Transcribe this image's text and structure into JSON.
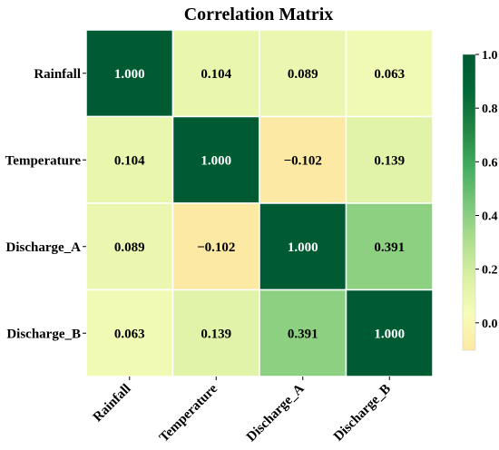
{
  "chart_data": {
    "type": "heatmap",
    "title": "Correlation Matrix",
    "row_labels": [
      "Rainfall",
      "Temperature",
      "Discharge_A",
      "Discharge_B"
    ],
    "col_labels": [
      "Rainfall",
      "Temperature",
      "Discharge_A",
      "Discharge_B"
    ],
    "values": [
      [
        1.0,
        0.104,
        0.089,
        0.063
      ],
      [
        0.104,
        1.0,
        -0.102,
        0.139
      ],
      [
        0.089,
        -0.102,
        1.0,
        0.391
      ],
      [
        0.063,
        0.139,
        0.391,
        1.0
      ]
    ],
    "value_labels": [
      [
        "1.000",
        "0.104",
        "0.089",
        "0.063"
      ],
      [
        "0.104",
        "1.000",
        "−0.102",
        "0.139"
      ],
      [
        "0.089",
        "−0.102",
        "1.000",
        "0.391"
      ],
      [
        "0.063",
        "0.139",
        "0.391",
        "1.000"
      ]
    ],
    "colorbar": {
      "range": [
        -0.102,
        1.0
      ],
      "ticks": [
        0.0,
        0.2,
        0.4,
        0.6,
        0.8,
        1.0
      ],
      "tick_labels": [
        "0.0",
        "0.2",
        "0.4",
        "0.6",
        "0.8",
        "1.0"
      ],
      "colormap": "YlGn",
      "colors": [
        "#fce9a4",
        "#f7fcb9",
        "#d9f0a3",
        "#addd8e",
        "#78c679",
        "#41ab5d",
        "#238443",
        "#006837",
        "#005a32"
      ]
    },
    "grid": false,
    "legend": "colorbar-right"
  }
}
